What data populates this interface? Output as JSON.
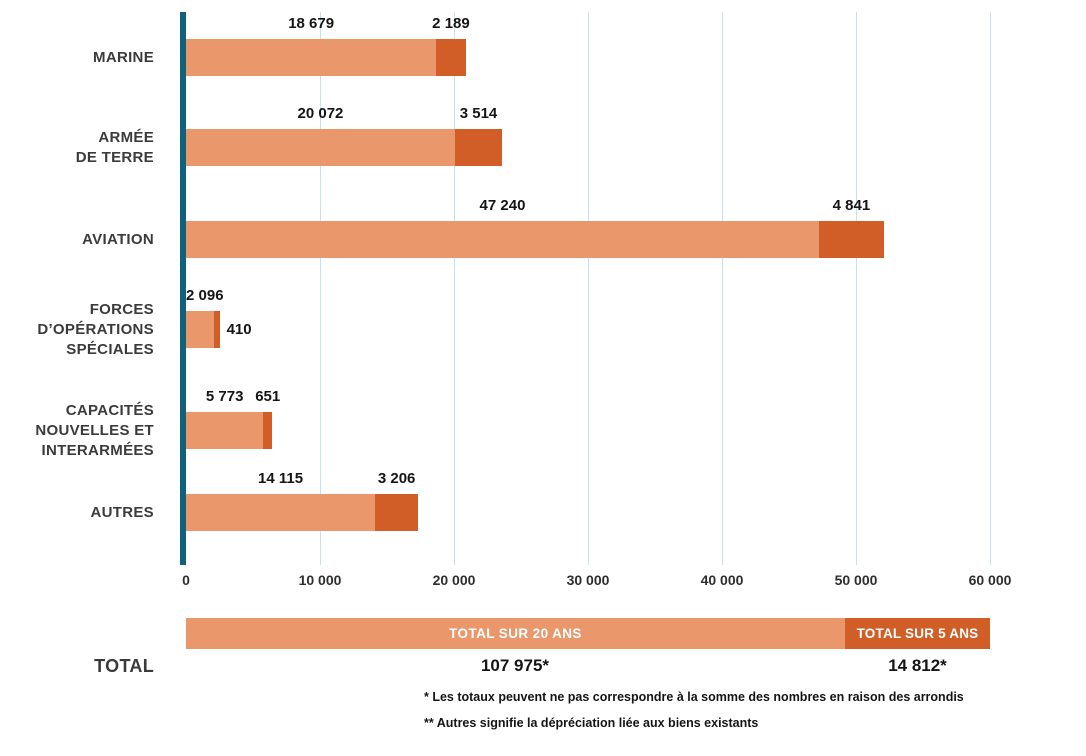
{
  "chart_data": {
    "type": "bar",
    "orientation": "horizontal",
    "stacked": true,
    "title": "",
    "xlabel": "",
    "ylabel": "",
    "xlim": [
      0,
      60000
    ],
    "grid": true,
    "categories": [
      [
        "MARINE"
      ],
      [
        "ARMÉE",
        "DE TERRE"
      ],
      [
        "AVIATION"
      ],
      [
        "FORCES",
        "D’OPÉRATIONS",
        "SPÉCIALES"
      ],
      [
        "CAPACITÉS",
        "NOUVELLES ET",
        "INTERARMÉES"
      ],
      [
        "AUTRES"
      ]
    ],
    "series": [
      {
        "name": "Total sur 20 ans",
        "values": [
          18679,
          20072,
          47240,
          2096,
          5773,
          14115
        ],
        "labels": [
          "18 679",
          "20 072",
          "47 240",
          "2 096",
          "5 773",
          "14 115"
        ],
        "color": "#E9976B"
      },
      {
        "name": "Total sur 5 ans",
        "values": [
          2189,
          3514,
          4841,
          410,
          651,
          3206
        ],
        "labels": [
          "2 189",
          "3 514",
          "4 841",
          "410",
          "651",
          "3 206"
        ],
        "color": "#D05E26"
      }
    ],
    "x_ticks": [
      "0",
      "10 000",
      "20 000",
      "30 000",
      "40 000",
      "50 000",
      "60 000"
    ]
  },
  "total": {
    "row_label": "TOTAL",
    "bar_label_20": "TOTAL SUR 20 ANS",
    "bar_label_5": "TOTAL SUR 5 ANS",
    "value_20": "107 975*",
    "value_5": "14 812*"
  },
  "footnotes": [
    "* Les totaux peuvent ne pas correspondre à la somme des nombres en raison des arrondis",
    "** Autres signifie la dépréciation liée aux biens existants"
  ],
  "colors": {
    "light": "#E9976B",
    "dark": "#D05E26",
    "axis": "#106179",
    "grid": "#C6E3E9"
  }
}
